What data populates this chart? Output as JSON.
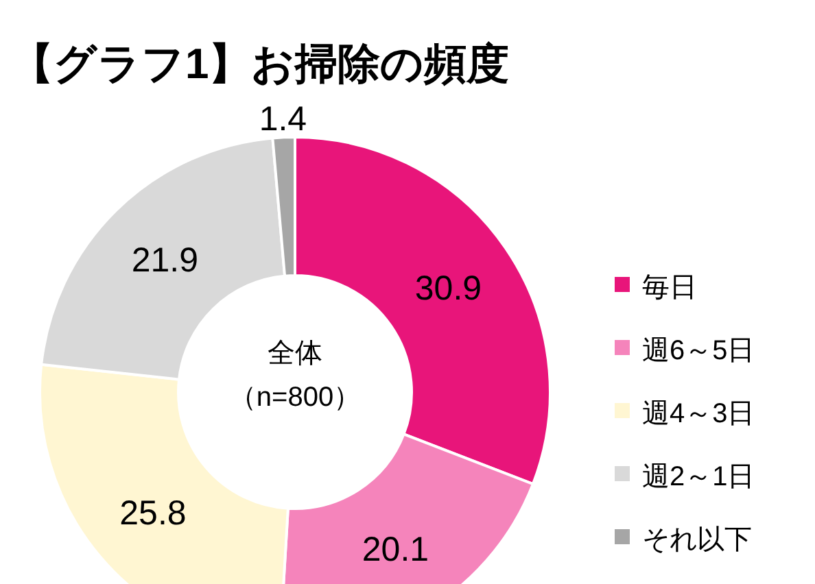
{
  "chart_data": {
    "type": "donut",
    "title": "【グラフ1】お掃除の頻度",
    "categories": [
      "毎日",
      "週6～5日",
      "週4～3日",
      "週2～1日",
      "それ以下"
    ],
    "values": [
      30.9,
      20.1,
      25.8,
      21.9,
      1.4
    ],
    "colors": [
      "#e8157a",
      "#f584bb",
      "#fff6d2",
      "#d9d9d9",
      "#a6a6a6"
    ],
    "data_labels": true,
    "legend": "right",
    "annotations": [
      "全体",
      "（n=800）"
    ]
  }
}
